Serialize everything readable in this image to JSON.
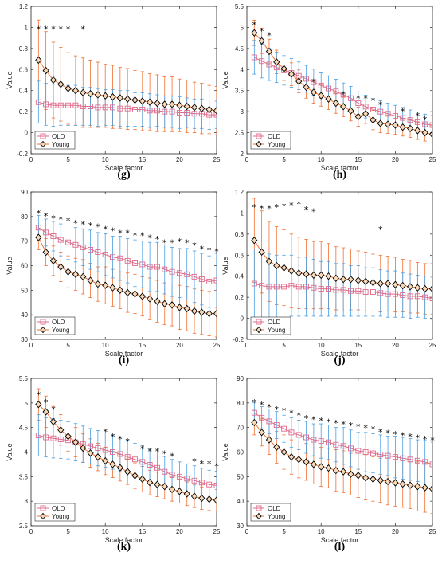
{
  "colors": {
    "old": "#4a9ee0",
    "old_marker": "#e06a8a",
    "young": "#f07030",
    "young_marker": "#6b3a1a"
  },
  "chart_data": [
    {
      "type": "line",
      "panel_label": "(g)",
      "xlabel": "Scale factor",
      "ylabel": "Value",
      "xlim": [
        0,
        25
      ],
      "ylim": [
        -0.2,
        1.2
      ],
      "xticks": [
        0,
        5,
        10,
        15,
        20,
        25
      ],
      "xtick_labels": [
        "0",
        "5",
        "10",
        "15",
        "20",
        "25"
      ],
      "yticks": [
        -0.2,
        0,
        0.2,
        0.4,
        0.6,
        0.8,
        1,
        1.2
      ],
      "ytick_labels": [
        "-0.2",
        "0",
        "0.2",
        "0.4",
        "0.6",
        "0.8",
        "1",
        "1.2"
      ],
      "legend": [
        "OLD",
        "Young"
      ],
      "legend_position": "bottom-left",
      "significance_stars": [
        1,
        2,
        3,
        4,
        5,
        7
      ],
      "star_y": 1.0,
      "series": [
        {
          "name": "OLD",
          "values": [
            0.29,
            0.27,
            0.26,
            0.26,
            0.26,
            0.26,
            0.25,
            0.25,
            0.24,
            0.24,
            0.24,
            0.23,
            0.23,
            0.22,
            0.22,
            0.21,
            0.21,
            0.2,
            0.2,
            0.19,
            0.19,
            0.18,
            0.18,
            0.17,
            0.17
          ],
          "errors": [
            0.2,
            0.2,
            0.2,
            0.19,
            0.19,
            0.19,
            0.18,
            0.18,
            0.18,
            0.17,
            0.17,
            0.17,
            0.17,
            0.16,
            0.16,
            0.16,
            0.15,
            0.15,
            0.15,
            0.15,
            0.14,
            0.14,
            0.14,
            0.14,
            0.13
          ]
        },
        {
          "name": "Young",
          "values": [
            0.69,
            0.59,
            0.5,
            0.46,
            0.42,
            0.4,
            0.38,
            0.37,
            0.36,
            0.35,
            0.34,
            0.33,
            0.32,
            0.31,
            0.3,
            0.29,
            0.28,
            0.27,
            0.27,
            0.26,
            0.25,
            0.24,
            0.23,
            0.22,
            0.21
          ],
          "errors": [
            0.38,
            0.37,
            0.36,
            0.35,
            0.34,
            0.33,
            0.33,
            0.32,
            0.31,
            0.3,
            0.3,
            0.29,
            0.29,
            0.28,
            0.28,
            0.27,
            0.27,
            0.26,
            0.26,
            0.25,
            0.25,
            0.24,
            0.24,
            0.23,
            0.23
          ]
        }
      ]
    },
    {
      "type": "line",
      "panel_label": "(h)",
      "xlabel": "Scale factor",
      "ylabel": "Value",
      "xlim": [
        0,
        25
      ],
      "ylim": [
        2,
        5.5
      ],
      "xticks": [
        0,
        5,
        10,
        15,
        20,
        25
      ],
      "xtick_labels": [
        "0",
        "5",
        "10",
        "15",
        "20",
        "25"
      ],
      "yticks": [
        2,
        2.5,
        3,
        3.5,
        4,
        4.5,
        5,
        5.5
      ],
      "ytick_labels": [
        "2",
        "2.5",
        "3",
        "3.5",
        "4",
        "4.5",
        "5",
        "5.5"
      ],
      "legend": [
        "OLD",
        "Young"
      ],
      "legend_position": "bottom-left",
      "significance_stars": [
        1,
        2,
        3,
        9,
        13,
        15,
        16,
        17,
        18,
        21,
        23,
        24
      ],
      "star_y": [
        5.1,
        4.95,
        4.85,
        3.75,
        3.45,
        3.35,
        3.35,
        3.3,
        3.2,
        3.05,
        2.95,
        2.85
      ],
      "series": [
        {
          "name": "OLD",
          "values": [
            4.29,
            4.2,
            4.12,
            4.05,
            3.98,
            3.92,
            3.85,
            3.78,
            3.7,
            3.62,
            3.55,
            3.48,
            3.4,
            3.32,
            3.2,
            3.12,
            3.05,
            3.0,
            2.95,
            2.9,
            2.85,
            2.8,
            2.75,
            2.7,
            2.68
          ],
          "errors": [
            0.4,
            0.4,
            0.38,
            0.36,
            0.35,
            0.34,
            0.33,
            0.32,
            0.31,
            0.3,
            0.3,
            0.29,
            0.28,
            0.28,
            0.27,
            0.27,
            0.26,
            0.26,
            0.25,
            0.25,
            0.25,
            0.24,
            0.24,
            0.24,
            0.23
          ]
        },
        {
          "name": "Young",
          "values": [
            4.87,
            4.68,
            4.43,
            4.18,
            4.02,
            3.89,
            3.72,
            3.58,
            3.46,
            3.38,
            3.3,
            3.2,
            3.12,
            3.02,
            2.88,
            2.95,
            2.8,
            2.72,
            2.7,
            2.68,
            2.63,
            2.6,
            2.55,
            2.5,
            2.46
          ],
          "errors": [
            0.3,
            0.3,
            0.29,
            0.28,
            0.28,
            0.27,
            0.27,
            0.26,
            0.26,
            0.25,
            0.25,
            0.24,
            0.24,
            0.24,
            0.23,
            0.23,
            0.23,
            0.22,
            0.22,
            0.22,
            0.21,
            0.21,
            0.21,
            0.2,
            0.2
          ]
        }
      ]
    },
    {
      "type": "line",
      "panel_label": "(i)",
      "xlabel": "Scale factor",
      "ylabel": "Value",
      "xlim": [
        0,
        25
      ],
      "ylim": [
        30,
        90
      ],
      "xticks": [
        0,
        5,
        10,
        15,
        20,
        25
      ],
      "xtick_labels": [
        "0",
        "5",
        "10",
        "15",
        "20",
        "25"
      ],
      "yticks": [
        30,
        40,
        50,
        60,
        70,
        80,
        90
      ],
      "ytick_labels": [
        "30",
        "40",
        "50",
        "60",
        "70",
        "80",
        "90"
      ],
      "legend": [
        "OLD",
        "Young"
      ],
      "legend_position": "bottom-left",
      "significance_stars": [
        1,
        2,
        3,
        4,
        5,
        6,
        7,
        8,
        9,
        10,
        11,
        12,
        13,
        14,
        15,
        16,
        17,
        18,
        19,
        20,
        21,
        22,
        23,
        24,
        25
      ],
      "star_y": [
        82,
        81,
        80,
        79.5,
        79,
        78,
        77.5,
        77,
        76.5,
        75.5,
        75,
        74,
        74,
        73,
        73,
        72,
        71.5,
        70,
        70,
        70.5,
        70,
        69,
        67.5,
        67,
        66.5
      ],
      "series": [
        {
          "name": "OLD",
          "values": [
            75.5,
            73.5,
            72,
            70.5,
            69.5,
            68.5,
            67.5,
            66.5,
            65.5,
            64.5,
            63.5,
            63,
            62,
            61,
            60.5,
            59.5,
            59.5,
            58.5,
            57.5,
            57,
            56.5,
            55.5,
            54.5,
            53.5,
            54
          ],
          "errors": [
            5,
            5.5,
            6,
            6.5,
            7,
            7,
            7.5,
            8,
            8,
            8.5,
            8.5,
            9,
            9,
            9.5,
            9.5,
            10,
            10,
            10,
            10,
            10,
            10.5,
            10.5,
            10.5,
            10.5,
            11
          ]
        },
        {
          "name": "Young",
          "values": [
            71.5,
            65.5,
            62,
            59.5,
            57.5,
            56.5,
            55.5,
            54,
            52.5,
            52,
            51,
            50,
            49,
            48.5,
            47.5,
            46.5,
            45.5,
            44.5,
            44,
            43,
            42.5,
            41.5,
            41,
            40.5,
            40.5
          ],
          "errors": [
            5,
            5.5,
            6,
            6,
            6.5,
            6.5,
            7,
            7,
            7,
            7.5,
            7.5,
            7.5,
            8,
            8,
            8,
            8.5,
            8.5,
            8.5,
            8.5,
            9,
            9,
            9,
            9,
            9,
            9.5
          ]
        }
      ]
    },
    {
      "type": "line",
      "panel_label": "(j)",
      "xlabel": "Scale factor",
      "ylabel": "Value",
      "xlim": [
        0,
        25
      ],
      "ylim": [
        -0.2,
        1.2
      ],
      "xticks": [
        0,
        5,
        10,
        15,
        20,
        25
      ],
      "xtick_labels": [
        "0",
        "5",
        "10",
        "15",
        "20",
        "25"
      ],
      "yticks": [
        -0.2,
        0,
        0.2,
        0.4,
        0.6,
        0.8,
        1,
        1.2
      ],
      "ytick_labels": [
        "-0.2",
        "0",
        "0.2",
        "0.4",
        "0.6",
        "0.8",
        "1",
        "1.2"
      ],
      "legend": [
        "OLD",
        "Young"
      ],
      "legend_position": "bottom-left",
      "significance_stars": [
        1,
        2,
        3,
        4,
        5,
        6,
        7,
        8,
        9,
        18
      ],
      "star_y": [
        1.07,
        1.06,
        1.06,
        1.07,
        1.08,
        1.09,
        1.1,
        1.05,
        1.03,
        0.86
      ],
      "series": [
        {
          "name": "OLD",
          "values": [
            0.33,
            0.31,
            0.3,
            0.3,
            0.3,
            0.31,
            0.3,
            0.3,
            0.29,
            0.28,
            0.28,
            0.27,
            0.27,
            0.26,
            0.26,
            0.25,
            0.25,
            0.24,
            0.23,
            0.23,
            0.22,
            0.21,
            0.21,
            0.2,
            0.19
          ],
          "errors": [
            0.33,
            0.32,
            0.31,
            0.3,
            0.3,
            0.29,
            0.28,
            0.28,
            0.27,
            0.26,
            0.26,
            0.25,
            0.25,
            0.24,
            0.24,
            0.23,
            0.23,
            0.22,
            0.22,
            0.22,
            0.21,
            0.21,
            0.2,
            0.2,
            0.2
          ]
        },
        {
          "name": "Young",
          "values": [
            0.74,
            0.63,
            0.54,
            0.5,
            0.48,
            0.45,
            0.43,
            0.42,
            0.41,
            0.41,
            0.4,
            0.38,
            0.37,
            0.37,
            0.36,
            0.35,
            0.34,
            0.33,
            0.33,
            0.32,
            0.31,
            0.3,
            0.29,
            0.28,
            0.28
          ],
          "errors": [
            0.4,
            0.39,
            0.38,
            0.37,
            0.36,
            0.35,
            0.34,
            0.33,
            0.32,
            0.32,
            0.31,
            0.3,
            0.3,
            0.29,
            0.28,
            0.28,
            0.27,
            0.27,
            0.26,
            0.26,
            0.25,
            0.25,
            0.24,
            0.24,
            0.24
          ]
        }
      ]
    },
    {
      "type": "line",
      "panel_label": "(k)",
      "xlabel": "Scale factor",
      "ylabel": "Value",
      "xlim": [
        0,
        25
      ],
      "ylim": [
        2.5,
        5.5
      ],
      "xticks": [
        0,
        5,
        10,
        15,
        20,
        25
      ],
      "xtick_labels": [
        "0",
        "5",
        "10",
        "15",
        "20",
        "25"
      ],
      "yticks": [
        2.5,
        3,
        3.5,
        4,
        4.5,
        5,
        5.5
      ],
      "ytick_labels": [
        "2.5",
        "3",
        "3.5",
        "4",
        "4.5",
        "5",
        "5.5"
      ],
      "legend": [
        "OLD",
        "Young"
      ],
      "legend_position": "bottom-left",
      "significance_stars": [
        1,
        2,
        3,
        10,
        11,
        12,
        13,
        15,
        16,
        17,
        18,
        19,
        22,
        23,
        24,
        25
      ],
      "star_y": [
        5.2,
        5.05,
        4.9,
        4.45,
        4.35,
        4.3,
        4.25,
        4.1,
        4.05,
        4.05,
        4.0,
        3.95,
        3.85,
        3.8,
        3.8,
        3.75
      ],
      "series": [
        {
          "name": "OLD",
          "values": [
            4.34,
            4.3,
            4.28,
            4.26,
            4.24,
            4.2,
            4.16,
            4.12,
            4.08,
            4.04,
            4.0,
            3.96,
            3.9,
            3.85,
            3.8,
            3.74,
            3.68,
            3.6,
            3.54,
            3.5,
            3.46,
            3.42,
            3.38,
            3.34,
            3.32
          ],
          "errors": [
            0.42,
            0.4,
            0.4,
            0.39,
            0.38,
            0.38,
            0.37,
            0.36,
            0.36,
            0.35,
            0.35,
            0.34,
            0.34,
            0.33,
            0.33,
            0.32,
            0.32,
            0.31,
            0.31,
            0.3,
            0.3,
            0.3,
            0.29,
            0.29,
            0.29
          ]
        },
        {
          "name": "Young",
          "values": [
            4.97,
            4.82,
            4.62,
            4.45,
            4.32,
            4.2,
            4.08,
            3.98,
            3.9,
            3.82,
            3.75,
            3.68,
            3.6,
            3.52,
            3.45,
            3.38,
            3.34,
            3.3,
            3.24,
            3.2,
            3.15,
            3.1,
            3.06,
            3.04,
            3.02
          ],
          "errors": [
            0.32,
            0.32,
            0.31,
            0.31,
            0.3,
            0.3,
            0.29,
            0.29,
            0.28,
            0.28,
            0.27,
            0.27,
            0.26,
            0.26,
            0.26,
            0.25,
            0.25,
            0.25,
            0.24,
            0.24,
            0.24,
            0.23,
            0.23,
            0.23,
            0.22
          ]
        }
      ]
    },
    {
      "type": "line",
      "panel_label": "(l)",
      "xlabel": "Scale factor",
      "ylabel": "Value",
      "xlim": [
        0,
        25
      ],
      "ylim": [
        30,
        90
      ],
      "xticks": [
        0,
        5,
        10,
        15,
        20,
        25
      ],
      "xtick_labels": [
        "0",
        "5",
        "10",
        "15",
        "20",
        "25"
      ],
      "yticks": [
        30,
        40,
        50,
        60,
        70,
        80,
        90
      ],
      "ytick_labels": [
        "30",
        "40",
        "50",
        "60",
        "70",
        "80",
        "90"
      ],
      "legend": [
        "OLD",
        "Young"
      ],
      "legend_position": "bottom-left",
      "significance_stars": [
        1,
        2,
        3,
        4,
        5,
        6,
        7,
        8,
        9,
        10,
        11,
        12,
        13,
        14,
        15,
        16,
        17,
        18,
        19,
        20,
        21,
        22,
        23,
        24,
        25
      ],
      "star_y": [
        81,
        80,
        79,
        78,
        77.5,
        76.5,
        75.5,
        74.5,
        74,
        73.5,
        73,
        72.5,
        72,
        71.5,
        71,
        70.5,
        70,
        69,
        68.5,
        68,
        67.5,
        67,
        66.5,
        66,
        65.5
      ],
      "series": [
        {
          "name": "OLD",
          "values": [
            76,
            74,
            72.5,
            71,
            69.5,
            68,
            67,
            66,
            65,
            64.5,
            64,
            63,
            62.5,
            61.5,
            60.5,
            60,
            59.5,
            59,
            58.5,
            58,
            57.5,
            57,
            56.5,
            56,
            55
          ],
          "errors": [
            4,
            4.5,
            5,
            5.5,
            5.5,
            6,
            6,
            6.5,
            6.5,
            7,
            7,
            7,
            7.5,
            7.5,
            7.5,
            8,
            8,
            8,
            8,
            8.5,
            8.5,
            8.5,
            8.5,
            9,
            9
          ]
        },
        {
          "name": "Young",
          "values": [
            72,
            68,
            65,
            62,
            60,
            58,
            57,
            56,
            55,
            54,
            53.5,
            52.5,
            52,
            51,
            50.5,
            49.5,
            49,
            48.5,
            48,
            47.5,
            47,
            46.5,
            46,
            45.5,
            45
          ],
          "errors": [
            5,
            5.5,
            6,
            6.5,
            7,
            7,
            7.5,
            7.5,
            8,
            8,
            8,
            8.5,
            8.5,
            8.5,
            9,
            9,
            9,
            9,
            9.5,
            9.5,
            9.5,
            9.5,
            10,
            10,
            10
          ]
        }
      ]
    }
  ]
}
